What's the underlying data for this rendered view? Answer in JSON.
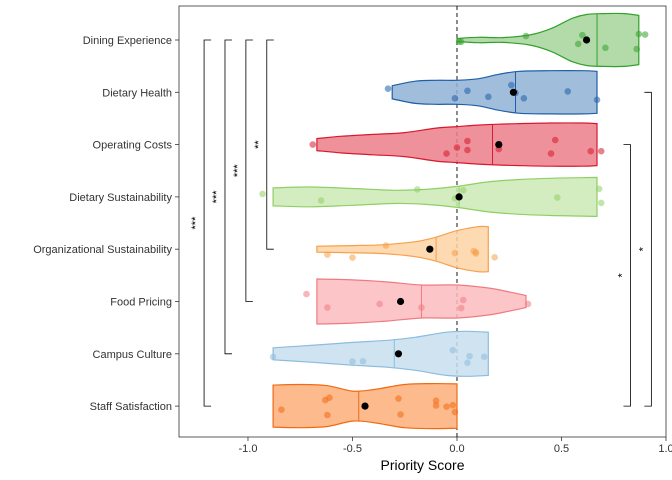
{
  "chart_data": {
    "type": "violin",
    "xlabel": "Priority Score",
    "xlim": [
      -1.33,
      1.0
    ],
    "x_ticks": [
      {
        "value": -1.0,
        "label": "-1.0"
      },
      {
        "value": -0.5,
        "label": "-0.5"
      },
      {
        "value": 0.0,
        "label": "0.0"
      },
      {
        "value": 0.5,
        "label": "0.5"
      },
      {
        "value": 1.0,
        "label": "1.0"
      }
    ],
    "reference_line": 0,
    "grid": false,
    "categories": [
      {
        "name": "Dining Experience",
        "color": "#33a02c",
        "fill": "#a6d59a",
        "mean": 0.62,
        "median": 0.67,
        "range": [
          0,
          0.87
        ],
        "profile": [
          [
            0,
            0.05
          ],
          [
            0.1,
            0.09
          ],
          [
            0.22,
            0.08
          ],
          [
            0.35,
            0.17
          ],
          [
            0.45,
            0.38
          ],
          [
            0.55,
            0.72
          ],
          [
            0.62,
            0.85
          ],
          [
            0.7,
            0.88
          ],
          [
            0.8,
            0.88
          ],
          [
            0.87,
            0.82
          ]
        ],
        "points": [
          [
            0.01,
            0.05
          ],
          [
            0.02,
            0.06
          ],
          [
            0.33,
            -0.13
          ],
          [
            0.58,
            0.13
          ],
          [
            0.6,
            -0.16
          ],
          [
            0.71,
            0.26
          ],
          [
            0.86,
            0.3
          ],
          [
            0.87,
            -0.2
          ],
          [
            0.9,
            -0.18
          ]
        ]
      },
      {
        "name": "Dietary Health",
        "color": "#1f5fa8",
        "fill": "#8fb1d6",
        "mean": 0.27,
        "median": 0.28,
        "range": [
          -0.31,
          0.67
        ],
        "profile": [
          [
            -0.31,
            0.22
          ],
          [
            -0.2,
            0.37
          ],
          [
            -0.1,
            0.4
          ],
          [
            0,
            0.4
          ],
          [
            0.1,
            0.45
          ],
          [
            0.2,
            0.6
          ],
          [
            0.3,
            0.7
          ],
          [
            0.45,
            0.72
          ],
          [
            0.6,
            0.72
          ],
          [
            0.67,
            0.7
          ]
        ],
        "points": [
          [
            -0.33,
            -0.12
          ],
          [
            -0.01,
            0.2
          ],
          [
            0.05,
            -0.05
          ],
          [
            0.15,
            0.15
          ],
          [
            0.26,
            -0.24
          ],
          [
            0.28,
            0.02
          ],
          [
            0.32,
            0.2
          ],
          [
            0.53,
            -0.03
          ],
          [
            0.67,
            0.25
          ]
        ]
      },
      {
        "name": "Operating Costs",
        "color": "#d7192f",
        "fill": "#eb7e88",
        "mean": 0.2,
        "median": 0.17,
        "range": [
          -0.67,
          0.67
        ],
        "profile": [
          [
            -0.67,
            0.2
          ],
          [
            -0.55,
            0.28
          ],
          [
            -0.4,
            0.34
          ],
          [
            -0.25,
            0.4
          ],
          [
            -0.1,
            0.55
          ],
          [
            0,
            0.6
          ],
          [
            0.1,
            0.65
          ],
          [
            0.2,
            0.68
          ],
          [
            0.3,
            0.7
          ],
          [
            0.45,
            0.72
          ],
          [
            0.6,
            0.72
          ],
          [
            0.67,
            0.7
          ]
        ],
        "points": [
          [
            -0.69,
            0.0
          ],
          [
            -0.05,
            0.3
          ],
          [
            0,
            0.1
          ],
          [
            0.05,
            0.18
          ],
          [
            0.05,
            -0.12
          ],
          [
            0.2,
            0.15
          ],
          [
            0.47,
            -0.15
          ],
          [
            0.45,
            0.3
          ],
          [
            0.64,
            0.22
          ],
          [
            0.69,
            0.22
          ]
        ]
      },
      {
        "name": "Dietary Sustainability",
        "color": "#8fcf65",
        "fill": "#cdeab5",
        "mean": 0.01,
        "median": 0.01,
        "range": [
          -0.88,
          0.67
        ],
        "profile": [
          [
            -0.88,
            0.3
          ],
          [
            -0.7,
            0.33
          ],
          [
            -0.5,
            0.28
          ],
          [
            -0.3,
            0.22
          ],
          [
            -0.15,
            0.25
          ],
          [
            0,
            0.35
          ],
          [
            0.15,
            0.5
          ],
          [
            0.3,
            0.58
          ],
          [
            0.45,
            0.62
          ],
          [
            0.6,
            0.64
          ],
          [
            0.67,
            0.65
          ]
        ],
        "points": [
          [
            -0.93,
            -0.1
          ],
          [
            -0.65,
            0.12
          ],
          [
            -0.19,
            -0.25
          ],
          [
            -0.01,
            0.05
          ],
          [
            0.03,
            -0.22
          ],
          [
            0.48,
            0.02
          ],
          [
            0.68,
            -0.27
          ],
          [
            0.69,
            0.2
          ]
        ]
      },
      {
        "name": "Organizational Sustainability",
        "color": "#f5a04a",
        "fill": "#fdd4a5",
        "mean": -0.13,
        "median": -0.1,
        "range": [
          -0.67,
          0.15
        ],
        "profile": [
          [
            -0.67,
            0.1
          ],
          [
            -0.5,
            0.12
          ],
          [
            -0.35,
            0.15
          ],
          [
            -0.2,
            0.25
          ],
          [
            -0.1,
            0.4
          ],
          [
            0,
            0.62
          ],
          [
            0.1,
            0.75
          ],
          [
            0.15,
            0.75
          ]
        ],
        "points": [
          [
            -0.62,
            0.18
          ],
          [
            -0.5,
            0.28
          ],
          [
            -0.34,
            -0.12
          ],
          [
            -0.01,
            0.13
          ],
          [
            0.08,
            0.06
          ],
          [
            0.09,
            0.14
          ],
          [
            0.18,
            0.27
          ],
          [
            0.09,
            0.1
          ]
        ]
      },
      {
        "name": "Food Pricing",
        "color": "#f07a82",
        "fill": "#fbbcc0",
        "mean": -0.27,
        "median": -0.17,
        "range": [
          -0.67,
          0.33
        ],
        "profile": [
          [
            -0.67,
            0.75
          ],
          [
            -0.5,
            0.72
          ],
          [
            -0.33,
            0.65
          ],
          [
            -0.17,
            0.55
          ],
          [
            0,
            0.55
          ],
          [
            0.15,
            0.45
          ],
          [
            0.25,
            0.32
          ],
          [
            0.33,
            0.2
          ]
        ],
        "points": [
          [
            -0.72,
            -0.25
          ],
          [
            -0.62,
            0.2
          ],
          [
            -0.37,
            0.08
          ],
          [
            -0.27,
            0.0
          ],
          [
            -0.17,
            0.2
          ],
          [
            0.02,
            0.22
          ],
          [
            0.03,
            -0.05
          ],
          [
            0.34,
            0.08
          ]
        ]
      },
      {
        "name": "Campus Culture",
        "color": "#8cbddd",
        "fill": "#c8deef",
        "mean": -0.28,
        "median": -0.3,
        "range": [
          -0.88,
          0.15
        ],
        "profile": [
          [
            -0.88,
            0.2
          ],
          [
            -0.7,
            0.28
          ],
          [
            -0.5,
            0.38
          ],
          [
            -0.33,
            0.45
          ],
          [
            -0.2,
            0.55
          ],
          [
            -0.05,
            0.72
          ],
          [
            0.05,
            0.75
          ],
          [
            0.15,
            0.72
          ]
        ],
        "points": [
          [
            -0.88,
            0.1
          ],
          [
            -0.5,
            0.26
          ],
          [
            -0.45,
            0.25
          ],
          [
            -0.28,
            0.0
          ],
          [
            -0.02,
            -0.12
          ],
          [
            0.05,
            0.3
          ],
          [
            0.06,
            0.08
          ],
          [
            0.13,
            0.1
          ]
        ]
      },
      {
        "name": "Staff Satisfaction",
        "color": "#f06a12",
        "fill": "#fdaf79",
        "mean": -0.44,
        "median": -0.47,
        "range": [
          -0.88,
          0.0
        ],
        "profile": [
          [
            -0.88,
            0.7
          ],
          [
            -0.75,
            0.72
          ],
          [
            -0.62,
            0.68
          ],
          [
            -0.5,
            0.5
          ],
          [
            -0.4,
            0.55
          ],
          [
            -0.25,
            0.72
          ],
          [
            -0.12,
            0.75
          ],
          [
            0,
            0.74
          ]
        ],
        "points": [
          [
            -0.84,
            0.12
          ],
          [
            -0.62,
            0.3
          ],
          [
            -0.63,
            -0.2
          ],
          [
            -0.61,
            -0.28
          ],
          [
            -0.44,
            0.0
          ],
          [
            -0.27,
            0.28
          ],
          [
            -0.28,
            -0.25
          ],
          [
            -0.1,
            -0.02
          ],
          [
            -0.1,
            -0.18
          ],
          [
            -0.05,
            0.02
          ],
          [
            -0.02,
            -0.03
          ],
          [
            -0.01,
            0.2
          ]
        ]
      }
    ],
    "significance_brackets": [
      {
        "from": "Dining Experience",
        "to": "Organizational Sustainability",
        "label": "**",
        "x": -0.91,
        "side": "left"
      },
      {
        "from": "Dining Experience",
        "to": "Food Pricing",
        "label": "***",
        "x": -1.01,
        "side": "left"
      },
      {
        "from": "Dining Experience",
        "to": "Campus Culture",
        "label": "***",
        "x": -1.11,
        "side": "left"
      },
      {
        "from": "Dining Experience",
        "to": "Staff Satisfaction",
        "label": "***",
        "x": -1.21,
        "side": "left"
      },
      {
        "from": "Operating Costs",
        "to": "Staff Satisfaction",
        "label": "*",
        "x": 0.83,
        "side": "right"
      },
      {
        "from": "Dietary Health",
        "to": "Staff Satisfaction",
        "label": "*",
        "x": 0.93,
        "side": "right"
      }
    ]
  }
}
